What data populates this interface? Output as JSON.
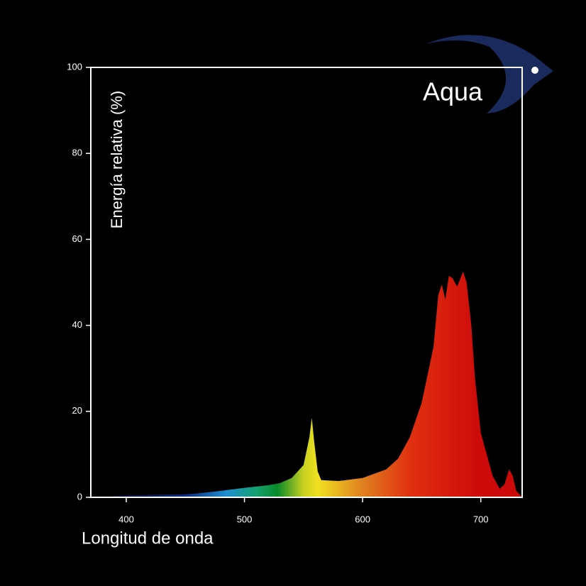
{
  "chart_data": {
    "type": "area",
    "logo_text": "Aqua",
    "x_label": "Longitud de onda",
    "y_label": "Energía relativa (%)",
    "xlim": [
      370,
      735
    ],
    "ylim": [
      0,
      100
    ],
    "xticks": [
      400,
      500,
      600,
      700
    ],
    "yticks": [
      0,
      20,
      40,
      60,
      80,
      100
    ],
    "fill_stops": [
      {
        "x": 400,
        "color": "#0a1040"
      },
      {
        "x": 450,
        "color": "#102a80"
      },
      {
        "x": 485,
        "color": "#1e90d0"
      },
      {
        "x": 510,
        "color": "#14a070"
      },
      {
        "x": 528,
        "color": "#0a8a2a"
      },
      {
        "x": 550,
        "color": "#c8d020"
      },
      {
        "x": 562,
        "color": "#f0e020"
      },
      {
        "x": 600,
        "color": "#e08020"
      },
      {
        "x": 640,
        "color": "#e03010"
      },
      {
        "x": 700,
        "color": "#cc0a0a"
      }
    ],
    "series": [
      {
        "x": [
          380,
          390,
          400,
          450,
          460,
          480,
          500,
          520,
          530,
          540,
          550,
          555,
          557,
          559,
          562,
          565,
          580,
          600,
          620,
          630,
          640,
          650,
          660,
          664,
          667,
          670,
          673,
          676,
          680,
          685,
          688,
          692,
          695,
          700,
          710,
          716,
          720,
          724,
          727,
          730,
          735
        ],
        "values": [
          0,
          0.3,
          0.5,
          0.7,
          0.9,
          1.5,
          2.2,
          2.8,
          3.3,
          4.5,
          7.5,
          14,
          18.5,
          13,
          6,
          4,
          3.8,
          4.5,
          6.5,
          9,
          14,
          22,
          35,
          47,
          49.5,
          46,
          51.5,
          51,
          49,
          52.5,
          50,
          40,
          28,
          15,
          5,
          2,
          3,
          6.5,
          5,
          1.5,
          0
        ]
      }
    ]
  }
}
